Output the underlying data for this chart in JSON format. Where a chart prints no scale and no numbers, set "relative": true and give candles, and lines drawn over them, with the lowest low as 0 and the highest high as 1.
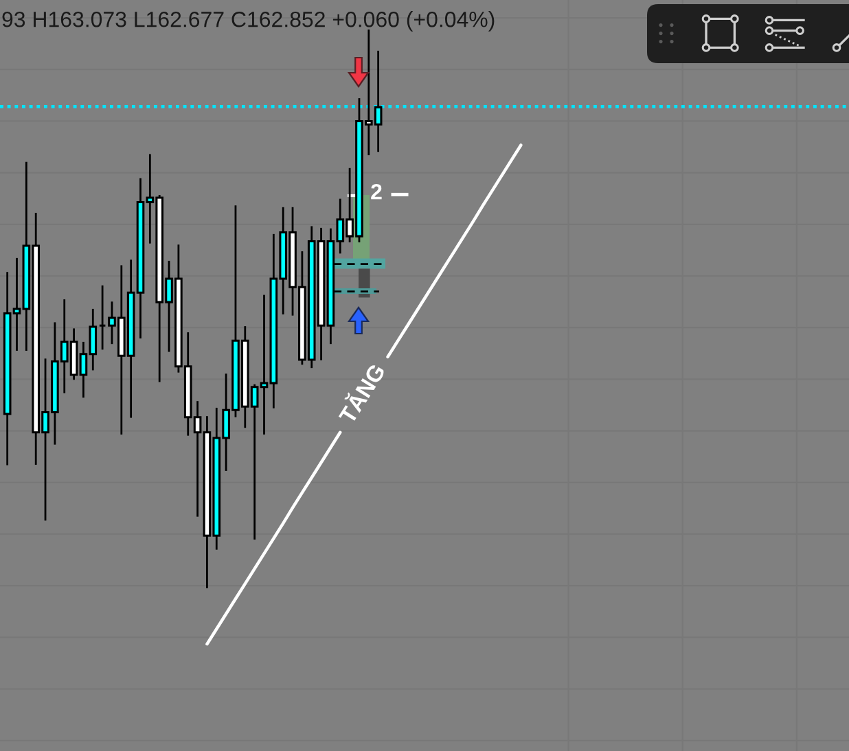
{
  "chart_data": {
    "type": "candlestick",
    "title": "93 H163.073 L162.677 C162.852 +0.060 (+0.04%)",
    "relative": true,
    "grid": true,
    "categories": [
      null,
      null,
      null,
      null,
      null,
      null,
      null,
      null,
      null,
      null,
      null,
      null,
      null,
      null,
      null,
      null,
      null,
      null,
      null,
      null,
      null,
      null,
      null,
      null,
      null,
      null,
      null,
      null,
      null,
      null,
      null,
      null,
      null,
      null,
      null,
      null,
      null,
      null,
      null,
      null,
      null,
      null,
      null,
      null,
      null,
      null,
      null,
      null,
      null,
      null,
      null,
      null,
      null,
      null,
      null
    ],
    "ohlc": [
      [
        0.312,
        0.566,
        0.22,
        0.492
      ],
      [
        0.492,
        0.591,
        0.425,
        0.5
      ],
      [
        0.5,
        0.763,
        0.425,
        0.613
      ],
      [
        0.613,
        0.672,
        0.221,
        0.279
      ],
      [
        0.279,
        0.411,
        0.121,
        0.315
      ],
      [
        0.315,
        0.476,
        0.257,
        0.406
      ],
      [
        0.406,
        0.517,
        0.349,
        0.441
      ],
      [
        0.441,
        0.465,
        0.373,
        0.382
      ],
      [
        0.382,
        0.441,
        0.341,
        0.419
      ],
      [
        0.419,
        0.5,
        0.39,
        0.468
      ],
      [
        0.47,
        0.542,
        0.427,
        0.47
      ],
      [
        0.47,
        0.513,
        0.437,
        0.484
      ],
      [
        0.484,
        0.578,
        0.275,
        0.416
      ],
      [
        0.416,
        0.588,
        0.305,
        0.529
      ],
      [
        0.529,
        0.734,
        0.447,
        0.691
      ],
      [
        0.691,
        0.777,
        0.617,
        0.699
      ],
      [
        0.699,
        0.704,
        0.369,
        0.512
      ],
      [
        0.512,
        0.586,
        0.423,
        0.554
      ],
      [
        0.554,
        0.615,
        0.386,
        0.397
      ],
      [
        0.397,
        0.458,
        0.273,
        0.306
      ],
      [
        0.306,
        0.335,
        0.128,
        0.279
      ],
      [
        0.279,
        0.308,
        0.0,
        0.094
      ],
      [
        0.094,
        0.323,
        0.069,
        0.269
      ],
      [
        0.269,
        0.384,
        0.21,
        0.319
      ],
      [
        0.319,
        0.685,
        0.306,
        0.443
      ],
      [
        0.443,
        0.469,
        0.287,
        0.325
      ],
      [
        0.325,
        0.365,
        0.087,
        0.36
      ],
      [
        0.36,
        0.525,
        0.275,
        0.367
      ],
      [
        0.367,
        0.634,
        0.322,
        0.554
      ],
      [
        0.554,
        0.682,
        0.49,
        0.637
      ],
      [
        0.637,
        0.682,
        0.488,
        0.539
      ],
      [
        0.539,
        0.603,
        0.4,
        0.409
      ],
      [
        0.409,
        0.648,
        0.394,
        0.621
      ],
      [
        0.621,
        0.645,
        0.408,
        0.47
      ],
      [
        0.47,
        0.644,
        0.437,
        0.621
      ],
      [
        0.621,
        0.697,
        0.599,
        0.66
      ],
      [
        0.66,
        0.752,
        0.619,
        0.63
      ],
      [
        0.63,
        0.877,
        0.619,
        0.836
      ],
      [
        0.836,
        1.0,
        0.775,
        0.83
      ],
      [
        0.83,
        0.962,
        0.781,
        0.861
      ],
      null,
      null,
      null,
      null,
      null,
      null,
      null,
      null,
      null,
      null,
      null,
      null,
      null,
      null,
      null
    ],
    "colors": [
      "#00ffff",
      "#00ffff",
      "#00ffff",
      "#ffffff",
      "#00ffff",
      "#00ffff",
      "#00ffff",
      "#ffffff",
      "#00ffff",
      "#00ffff",
      "#000000",
      "#00ffff",
      "#ffffff",
      "#00ffff",
      "#00ffff",
      "#00ffff",
      "#ffffff",
      "#00ffff",
      "#ffffff",
      "#ffffff",
      "#ffffff",
      "#ffffff",
      "#00ffff",
      "#00ffff",
      "#00ffff",
      "#ffffff",
      "#00ffff",
      "#00ffff",
      "#00ffff",
      "#00ffff",
      "#ffffff",
      "#ffffff",
      "#00ffff",
      "#ffffff",
      "#00ffff",
      "#00ffff",
      "#ffffff",
      "#00ffff",
      "#ffffff",
      "#00ffff",
      null,
      null,
      null,
      null,
      null,
      null,
      null,
      null,
      null,
      null,
      null,
      null,
      null,
      null,
      null
    ],
    "series": [
      {
        "type": "line",
        "name": "TĂNG",
        "color": "#ffffff",
        "values": [
          null,
          null,
          null,
          null,
          null,
          null,
          null,
          null,
          null,
          null,
          null,
          null,
          null,
          null,
          null,
          null,
          null,
          null,
          null,
          null,
          null,
          -0.1,
          -0.073,
          -0.046,
          -0.019,
          0.008,
          0.035,
          0.062,
          0.089,
          0.116,
          0.144,
          0.171,
          0.198,
          0.225,
          0.252,
          0.279,
          null,
          null,
          null,
          null,
          0.414,
          0.441,
          0.468,
          0.495,
          0.522,
          0.549,
          0.576,
          0.603,
          0.63,
          0.657,
          0.685,
          0.712,
          0.739,
          0.766,
          0.793
        ]
      }
    ],
    "ref_lines": [
      {
        "axis": "y",
        "value": 0.862,
        "color": "#00e5ff",
        "line_style": "dotted"
      }
    ],
    "annotations": [
      "2"
    ]
  }
}
